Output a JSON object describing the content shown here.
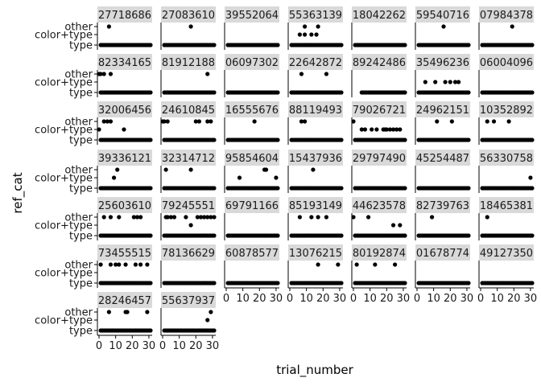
{
  "chart_data": {
    "type": "scatter",
    "xlabel": "trial_number",
    "ylabel": "ref_cat",
    "xlim": [
      0,
      31
    ],
    "x_ticks": [
      "0",
      "10",
      "20",
      "30"
    ],
    "y_categories": [
      "type",
      "color+type",
      "other"
    ],
    "strip_color": "#d9d9d9",
    "point_color": "#000000",
    "panels": [
      {
        "label": "27718686",
        "other": [
          6
        ],
        "color+type": [],
        "type_min": 1
      },
      {
        "label": "27083610",
        "other": [
          17
        ],
        "color+type": [],
        "type_min": 1
      },
      {
        "label": "39552064",
        "other": [],
        "color+type": [],
        "type_min": 1
      },
      {
        "label": "55363139",
        "other": [
          9,
          17
        ],
        "color+type": [
          6,
          9,
          13,
          16
        ],
        "type_min": 1
      },
      {
        "label": "18042262",
        "other": [],
        "color+type": [],
        "type_min": 1
      },
      {
        "label": "59540716",
        "other": [
          16
        ],
        "color+type": [],
        "type_min": 1
      },
      {
        "label": "07984378",
        "other": [
          19
        ],
        "color+type": [],
        "type_min": 1
      },
      {
        "label": "82334165",
        "other": [
          0,
          1,
          3,
          7
        ],
        "color+type": [],
        "type_min": 1
      },
      {
        "label": "81912188",
        "other": [
          27
        ],
        "color+type": [],
        "type_min": 1
      },
      {
        "label": "06097302",
        "other": [],
        "color+type": [],
        "type_min": 1
      },
      {
        "label": "22642872",
        "other": [
          7,
          22
        ],
        "color+type": [],
        "type_min": 1
      },
      {
        "label": "89242486",
        "other": [],
        "color+type": [],
        "type_min": 5
      },
      {
        "label": "35496236",
        "other": [],
        "color+type": [
          5,
          11,
          17,
          20,
          23,
          25
        ],
        "type_min": 1
      },
      {
        "label": "06004096",
        "other": [],
        "color+type": [],
        "type_min": 1
      },
      {
        "label": "32006456",
        "other": [
          3,
          5,
          7
        ],
        "color+type": [
          0,
          15
        ],
        "type_min": 1
      },
      {
        "label": "24610845",
        "other": [
          0,
          1,
          3,
          20,
          22,
          27,
          29
        ],
        "color+type": [],
        "type_min": 1
      },
      {
        "label": "16555676",
        "other": [
          17
        ],
        "color+type": [],
        "type_min": 1
      },
      {
        "label": "88119493",
        "other": [
          7,
          9
        ],
        "color+type": [],
        "type_min": 1
      },
      {
        "label": "79026721",
        "other": [
          0
        ],
        "color+type": [
          5,
          7,
          11,
          14,
          18,
          19,
          20,
          22,
          24,
          26,
          28
        ],
        "type_min": 1
      },
      {
        "label": "24962151",
        "other": [
          12,
          21
        ],
        "color+type": [],
        "type_min": 1
      },
      {
        "label": "10352892",
        "other": [
          4,
          8,
          17
        ],
        "color+type": [],
        "type_min": 1
      },
      {
        "label": "39336121",
        "other": [
          11
        ],
        "color+type": [
          9
        ],
        "type_min": 1
      },
      {
        "label": "32314712",
        "other": [
          2,
          17
        ],
        "color+type": [],
        "type_min": 1
      },
      {
        "label": "95854604",
        "other": [
          23,
          24
        ],
        "color+type": [
          8,
          30
        ],
        "type_min": 1
      },
      {
        "label": "15437936",
        "other": [
          14
        ],
        "color+type": [],
        "type_min": 1
      },
      {
        "label": "29797490",
        "other": [],
        "color+type": [],
        "type_min": 1
      },
      {
        "label": "45254487",
        "other": [],
        "color+type": [],
        "type_min": 1
      },
      {
        "label": "56330758",
        "other": [],
        "color+type": [
          30
        ],
        "type_min": 1
      },
      {
        "label": "25603610",
        "other": [
          3,
          7,
          12,
          21,
          23,
          25
        ],
        "color+type": [],
        "type_min": 1
      },
      {
        "label": "79245551",
        "other": [
          2,
          3,
          5,
          7,
          14,
          21,
          23,
          25,
          27,
          29,
          31
        ],
        "color+type": [
          17
        ],
        "type_min": 1
      },
      {
        "label": "69791166",
        "other": [],
        "color+type": [],
        "type_min": 1
      },
      {
        "label": "85193149",
        "other": [
          6,
          13,
          17,
          22
        ],
        "color+type": [],
        "type_min": 1
      },
      {
        "label": "44623578",
        "other": [
          0,
          9
        ],
        "color+type": [
          24,
          28
        ],
        "type_min": 1
      },
      {
        "label": "82739763",
        "other": [
          9
        ],
        "color+type": [],
        "type_min": 1
      },
      {
        "label": "18465381",
        "other": [
          4
        ],
        "color+type": [],
        "type_min": 1
      },
      {
        "label": "73455515",
        "other": [
          1,
          7,
          10,
          12,
          16,
          22,
          25,
          29
        ],
        "color+type": [],
        "type_min": 1
      },
      {
        "label": "78136629",
        "other": [],
        "color+type": [],
        "type_min": 1
      },
      {
        "label": "60878577",
        "other": [],
        "color+type": [],
        "type_min": 1
      },
      {
        "label": "13076215",
        "other": [
          17,
          29
        ],
        "color+type": [],
        "type_min": 1
      },
      {
        "label": "80192874",
        "other": [
          2,
          13,
          25
        ],
        "color+type": [],
        "type_min": 1
      },
      {
        "label": "01678774",
        "other": [],
        "color+type": [],
        "type_min": 1
      },
      {
        "label": "49127350",
        "other": [],
        "color+type": [],
        "type_min": 1
      },
      {
        "label": "28246457",
        "other": [
          6,
          16,
          17,
          29
        ],
        "color+type": [],
        "type_min": 1
      },
      {
        "label": "55637937",
        "other": [
          29
        ],
        "color+type": [
          27
        ],
        "type_min": 1
      }
    ]
  }
}
